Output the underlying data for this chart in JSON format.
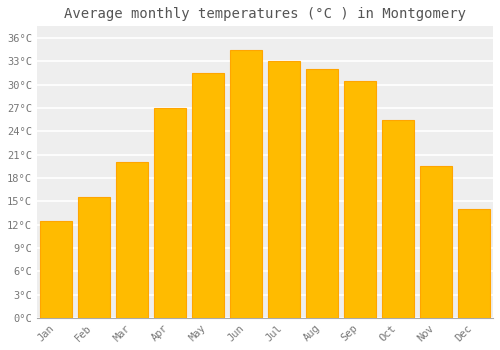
{
  "title": "Average monthly temperatures (°C ) in Montgomery",
  "months": [
    "Jan",
    "Feb",
    "Mar",
    "Apr",
    "May",
    "Jun",
    "Jul",
    "Aug",
    "Sep",
    "Oct",
    "Nov",
    "Dec"
  ],
  "values": [
    12.5,
    15.5,
    20.0,
    27.0,
    31.5,
    34.5,
    33.0,
    32.0,
    30.5,
    25.5,
    19.5,
    14.0
  ],
  "bar_color": "#FFBB00",
  "bar_edge_color": "#FFA500",
  "background_color": "#FFFFFF",
  "plot_bg_color": "#EEEEEE",
  "grid_color": "#FFFFFF",
  "yticks": [
    0,
    3,
    6,
    9,
    12,
    15,
    18,
    21,
    24,
    27,
    30,
    33,
    36
  ],
  "ylim": [
    0,
    37.5
  ],
  "title_fontsize": 10,
  "tick_fontsize": 7.5,
  "title_color": "#555555",
  "tick_color": "#777777",
  "font_family": "monospace",
  "bar_width": 0.85
}
